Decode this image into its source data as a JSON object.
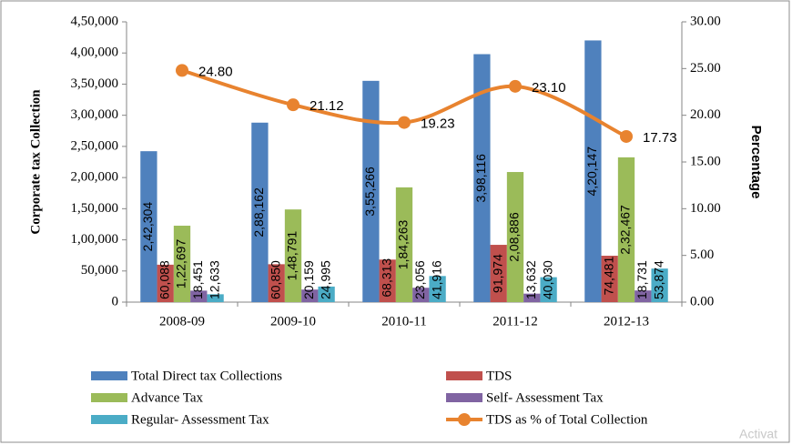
{
  "chart_data": {
    "type": "bar-line",
    "y_label": "Corporate tax Collection",
    "y2_label": "Percentage",
    "categories": [
      "2008-09",
      "2009-10",
      "2010-11",
      "2011-12",
      "2012-13"
    ],
    "series": [
      {
        "name": "Total Direct tax Collections",
        "type": "bar",
        "color": "#4f81bd",
        "values": [
          242304,
          288162,
          355266,
          398116,
          420147
        ],
        "value_labels": [
          "2,42,304",
          "2,88,162",
          "3,55,266",
          "3,98,116",
          "4,20,147"
        ]
      },
      {
        "name": "TDS",
        "type": "bar",
        "color": "#c0504d",
        "values": [
          60088,
          60850,
          68313,
          91974,
          74481
        ],
        "value_labels": [
          "60,088",
          "60,850",
          "68,313",
          "91,974",
          "74,481"
        ]
      },
      {
        "name": "Advance Tax",
        "type": "bar",
        "color": "#9bbb59",
        "values": [
          122697,
          148791,
          184263,
          208886,
          232467
        ],
        "value_labels": [
          "1,22,697",
          "1,48,791",
          "1,84,263",
          "2,08,886",
          "2,32,467"
        ]
      },
      {
        "name": "Self- Assessment Tax",
        "type": "bar",
        "color": "#8064a2",
        "values": [
          18451,
          20159,
          23056,
          13632,
          18731
        ],
        "value_labels": [
          "18,451",
          "20,159",
          "23,056",
          "13,632",
          "18,731"
        ]
      },
      {
        "name": "Regular- Assessment Tax",
        "type": "bar",
        "color": "#4bacc6",
        "values": [
          12633,
          24995,
          41916,
          40030,
          53874
        ],
        "value_labels": [
          "12,633",
          "24,995",
          "41,916",
          "40,030",
          "53,874"
        ]
      },
      {
        "name": "TDS as % of Total Collection",
        "type": "line",
        "axis": "y2",
        "color": "#e8832f",
        "values": [
          24.8,
          21.12,
          19.23,
          23.1,
          17.73
        ],
        "value_labels": [
          "24.80",
          "21.12",
          "19.23",
          "23.10",
          "17.73"
        ]
      }
    ],
    "ylim": [
      0,
      450000
    ],
    "yticks": [
      0,
      {
        "value": 50000,
        "label": "50,000"
      },
      {
        "value": 100000,
        "label": "1,00,000"
      },
      {
        "value": 150000,
        "label": "1,50,000"
      },
      {
        "value": 200000,
        "label": "2,00,000"
      },
      {
        "value": 250000,
        "label": "2,50,000"
      },
      {
        "value": 300000,
        "label": "3,00,000"
      },
      {
        "value": 350000,
        "label": "3,50,000"
      },
      {
        "value": 400000,
        "label": "4,00,000"
      },
      {
        "value": 450000,
        "label": "4,50,000"
      }
    ],
    "y2lim": [
      0,
      30
    ],
    "y2ticks": [
      {
        "value": 0,
        "label": "0.00"
      },
      {
        "value": 5,
        "label": "5.00"
      },
      {
        "value": 10,
        "label": "10.00"
      },
      {
        "value": 15,
        "label": "15.00"
      },
      {
        "value": 20,
        "label": "20.00"
      },
      {
        "value": 25,
        "label": "25.00"
      },
      {
        "value": 30,
        "label": "30.00"
      }
    ],
    "legend": "bottom",
    "watermark": "Activat"
  }
}
